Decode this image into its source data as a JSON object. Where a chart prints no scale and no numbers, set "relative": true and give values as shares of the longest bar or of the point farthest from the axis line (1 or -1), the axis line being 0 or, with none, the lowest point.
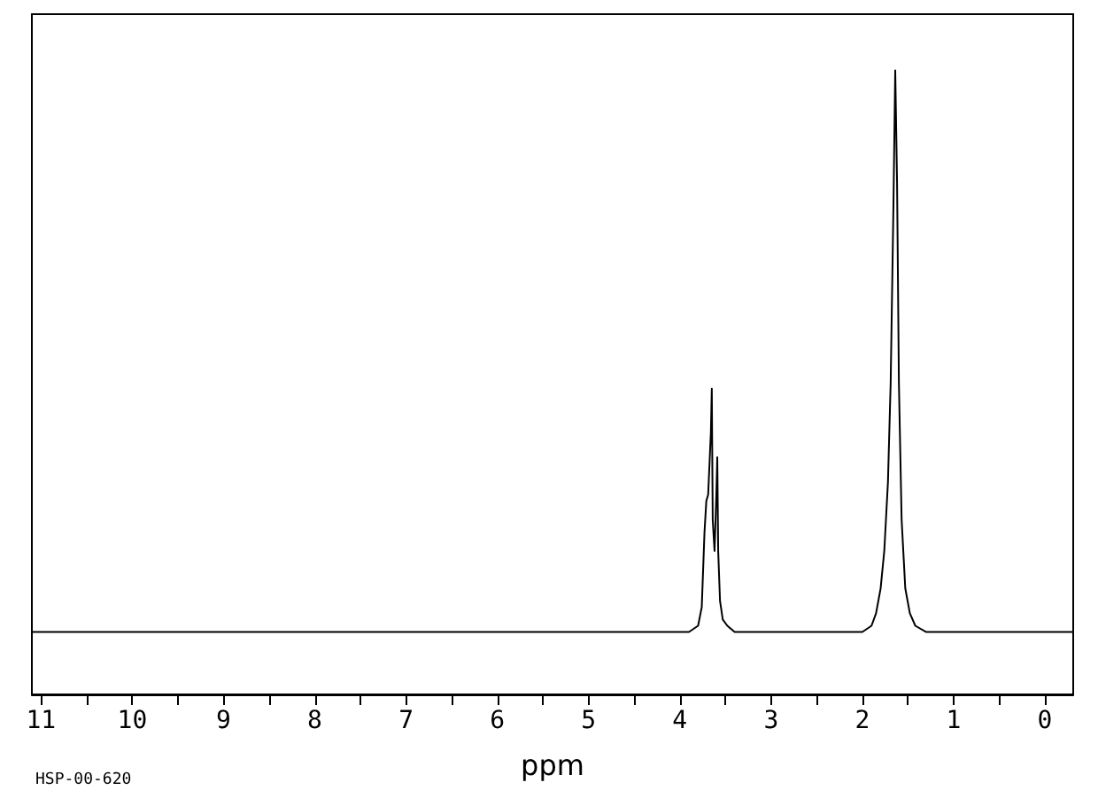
{
  "chart_data": {
    "type": "line",
    "relative": true,
    "xlabel": "ppm",
    "annotations": [
      "HSP-00-620"
    ],
    "xlim": [
      11.1,
      -0.31
    ],
    "xticks": [
      11,
      {
        "value": 10.5,
        "label": null
      },
      10,
      {
        "value": 9.5,
        "label": null
      },
      9,
      {
        "value": 8.5,
        "label": null
      },
      8,
      {
        "value": 7.5,
        "label": null
      },
      7,
      {
        "value": 6.5,
        "label": null
      },
      6,
      {
        "value": 5.5,
        "label": null
      },
      5,
      {
        "value": 4.5,
        "label": null
      },
      4,
      {
        "value": 3.5,
        "label": null
      },
      3,
      {
        "value": 2.5,
        "label": null
      },
      2,
      {
        "value": 1.5,
        "label": null
      },
      1,
      {
        "value": 0.5,
        "label": null
      },
      0
    ],
    "series": [
      {
        "color": "#000000",
        "x": [
          11.1,
          8,
          5,
          3.9,
          3.8,
          3.76,
          3.73,
          3.71,
          3.69,
          3.66,
          3.65,
          3.64,
          3.62,
          3.6,
          3.59,
          3.58,
          3.56,
          3.53,
          3.48,
          3.4,
          2,
          1.9,
          1.85,
          1.8,
          1.76,
          1.72,
          1.69,
          1.66,
          1.64,
          1.62,
          1.6,
          1.57,
          1.53,
          1.48,
          1.42,
          1.3,
          0.5,
          -0.31
        ],
        "values": [
          0.1,
          0.1,
          0.1,
          0.1,
          0.11,
          0.14,
          0.26,
          0.31,
          0.32,
          0.42,
          0.49,
          0.28,
          0.23,
          0.32,
          0.38,
          0.23,
          0.15,
          0.12,
          0.11,
          0.1,
          0.1,
          0.11,
          0.13,
          0.17,
          0.23,
          0.34,
          0.5,
          0.78,
          1,
          0.82,
          0.5,
          0.28,
          0.17,
          0.13,
          0.11,
          0.1,
          0.1,
          0.1
        ]
      }
    ],
    "marker": "none",
    "line_style": "solid",
    "grid": false
  }
}
